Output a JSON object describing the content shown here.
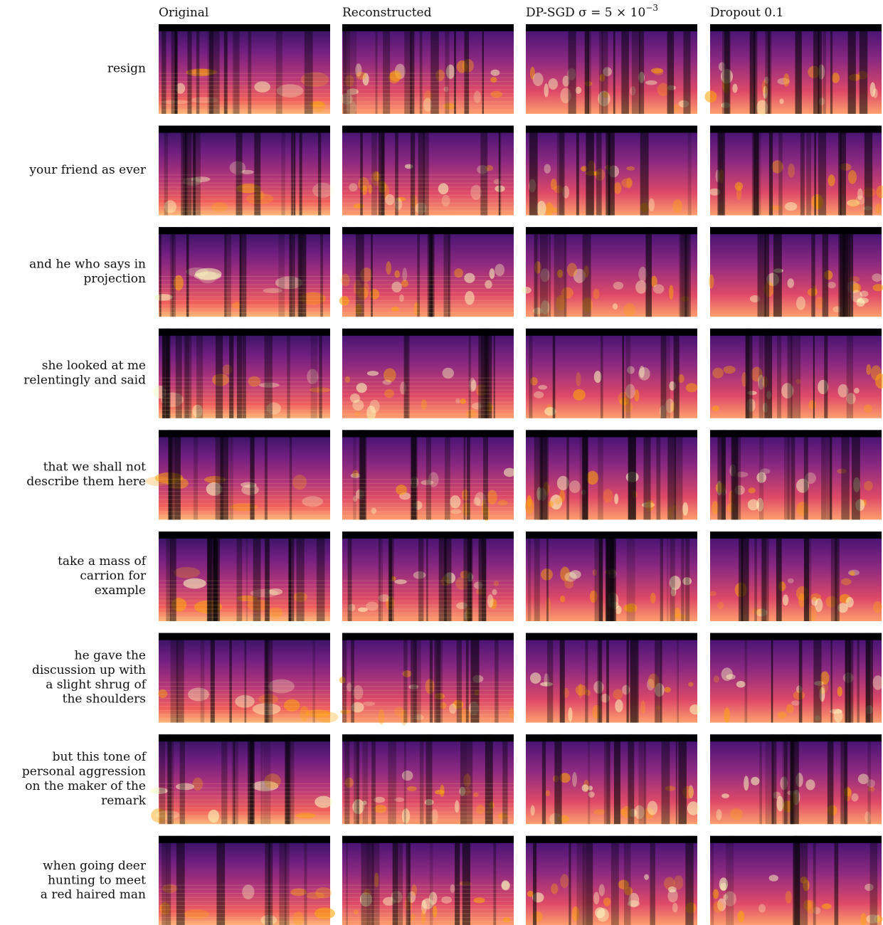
{
  "columns": [
    {
      "text": "Original"
    },
    {
      "text": "Reconstructed"
    },
    {
      "text": "DP-SGD σ = 5 × 10",
      "superscript": "−3"
    },
    {
      "text": "Dropout 0.1"
    }
  ],
  "rows": [
    {
      "label": [
        "resign"
      ]
    },
    {
      "label": [
        "your friend as ever"
      ]
    },
    {
      "label": [
        "and he who says in",
        "projection"
      ]
    },
    {
      "label": [
        "she looked at me",
        "relentingly and said"
      ]
    },
    {
      "label": [
        "that we shall not",
        "describe them here"
      ]
    },
    {
      "label": [
        "take a mass of",
        "carrion for",
        "example"
      ]
    },
    {
      "label": [
        "he gave the",
        "discussion up with",
        "a slight shrug of",
        "the shoulders"
      ]
    },
    {
      "label": [
        "but this tone of",
        "personal aggression",
        "on the maker of the",
        "remark"
      ]
    },
    {
      "label": [
        "when going deer",
        "hunting to meet",
        "a red haired man"
      ]
    }
  ]
}
